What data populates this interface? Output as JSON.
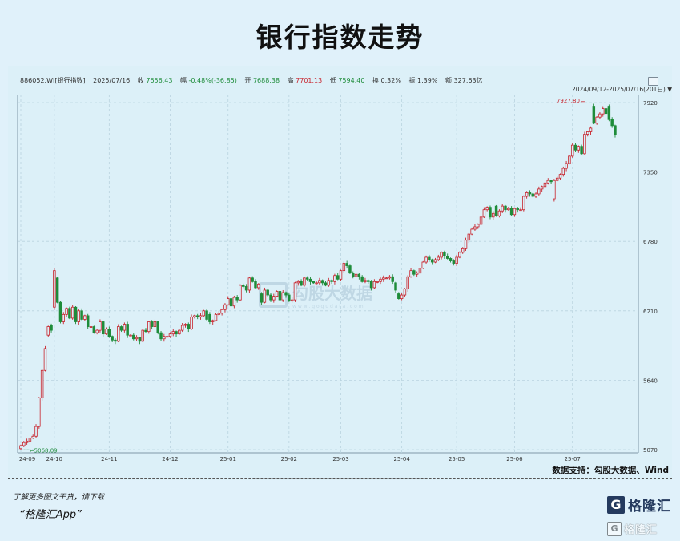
{
  "title": "银行指数走势",
  "quote": {
    "code": "886052.WI[银行指数]",
    "date": "2025/07/16",
    "close_label": "收",
    "close": "7656.43",
    "change_label": "幅",
    "change": "-0.48%(-36.85)",
    "open_label": "开",
    "open": "7688.38",
    "high_label": "高",
    "high": "7701.13",
    "low_label": "低",
    "low": "7594.40",
    "turnover_label": "换",
    "turnover": "0.32%",
    "amplitude_label": "振",
    "amplitude": "1.39%",
    "amount_label": "额",
    "amount": "327.63亿"
  },
  "range_text": "2024/09/12-2025/07/16(201日)",
  "source_text": "数据支持：勾股大数据、Wind",
  "footer": {
    "line1": "了解更多图文干货，请下载",
    "line2": "“格隆汇App”"
  },
  "logo": {
    "mark": "G",
    "text": "格隆汇"
  },
  "watermark": {
    "text": "格隆汇",
    "main": "勾股大数据",
    "sub": "w w w . g o g u d a t a . c o m"
  },
  "colors": {
    "up": "#c8232c",
    "down": "#1e8c3a",
    "grid": "#b9d3df"
  },
  "chart_data": {
    "type": "candlestick",
    "title": "银行指数走势",
    "ylim": [
      5070,
      7950
    ],
    "yticks": [
      5070,
      5640,
      6210,
      6780,
      7350,
      7920
    ],
    "xtick_labels": [
      "24-09",
      "24-10",
      "24-11",
      "24-12",
      "25-01",
      "25-02",
      "25-03",
      "25-04",
      "25-05",
      "25-06",
      "25-07"
    ],
    "xtick_index": [
      0,
      11,
      29,
      49,
      68,
      88,
      105,
      125,
      143,
      162,
      181
    ],
    "count": 201,
    "annotations": [
      {
        "text": "7927.80",
        "index": 185,
        "value": 7927.8,
        "kind": "max"
      },
      {
        "text": "5068.09",
        "index": 1,
        "value": 5068.09,
        "kind": "min"
      }
    ],
    "closes": [
      5103,
      5128,
      5140,
      5165,
      5180,
      5260,
      5495,
      5720,
      5900,
      6080,
      6050,
      6540,
      6280,
      6120,
      6180,
      6230,
      6150,
      6240,
      6120,
      6210,
      6140,
      6170,
      6080,
      6080,
      6030,
      6050,
      6120,
      6020,
      6060,
      6000,
      5970,
      5960,
      6080,
      6050,
      6100,
      6010,
      6010,
      5980,
      5990,
      5960,
      6050,
      6040,
      6120,
      6080,
      6120,
      6030,
      5980,
      6000,
      6000,
      6020,
      6040,
      6020,
      6050,
      6090,
      6100,
      6060,
      6160,
      6170,
      6160,
      6170,
      6210,
      6140,
      6120,
      6130,
      6180,
      6190,
      6220,
      6260,
      6310,
      6250,
      6320,
      6300,
      6420,
      6410,
      6380,
      6480,
      6450,
      6400,
      6430,
      6280,
      6380,
      6340,
      6300,
      6330,
      6370,
      6300,
      6360,
      6340,
      6290,
      6300,
      6440,
      6450,
      6420,
      6480,
      6470,
      6450,
      6440,
      6440,
      6460,
      6440,
      6420,
      6460,
      6450,
      6500,
      6470,
      6540,
      6600,
      6580,
      6520,
      6490,
      6510,
      6490,
      6450,
      6460,
      6450,
      6400,
      6450,
      6450,
      6470,
      6480,
      6480,
      6490,
      6450,
      6380,
      6310,
      6340,
      6390,
      6490,
      6540,
      6510,
      6520,
      6560,
      6610,
      6650,
      6630,
      6610,
      6630,
      6650,
      6690,
      6660,
      6640,
      6620,
      6600,
      6650,
      6690,
      6720,
      6790,
      6840,
      6880,
      6900,
      6920,
      6980,
      7040,
      7060,
      6980,
      7010,
      6990,
      7030,
      7070,
      7040,
      7050,
      7000,
      7050,
      7040,
      7040,
      7150,
      7180,
      7170,
      7150,
      7170,
      7210,
      7230,
      7260,
      7280,
      7270,
      7280,
      7300,
      7330,
      7380,
      7420,
      7480,
      7570,
      7530,
      7560,
      7500,
      7660,
      7680,
      7710,
      7750,
      7800,
      7827,
      7870,
      7830,
      7780,
      7730,
      7656
    ],
    "moves": [
      [
        9,
        70
      ],
      [
        10,
        -40
      ],
      [
        11,
        300
      ],
      [
        12,
        -200
      ],
      [
        62,
        -60
      ],
      [
        79,
        -70
      ],
      [
        123,
        -60
      ],
      [
        124,
        -40
      ],
      [
        156,
        -80
      ],
      [
        175,
        150
      ],
      [
        188,
        -140
      ],
      [
        193,
        -110
      ],
      [
        196,
        120
      ],
      [
        200,
        -50
      ]
    ]
  }
}
